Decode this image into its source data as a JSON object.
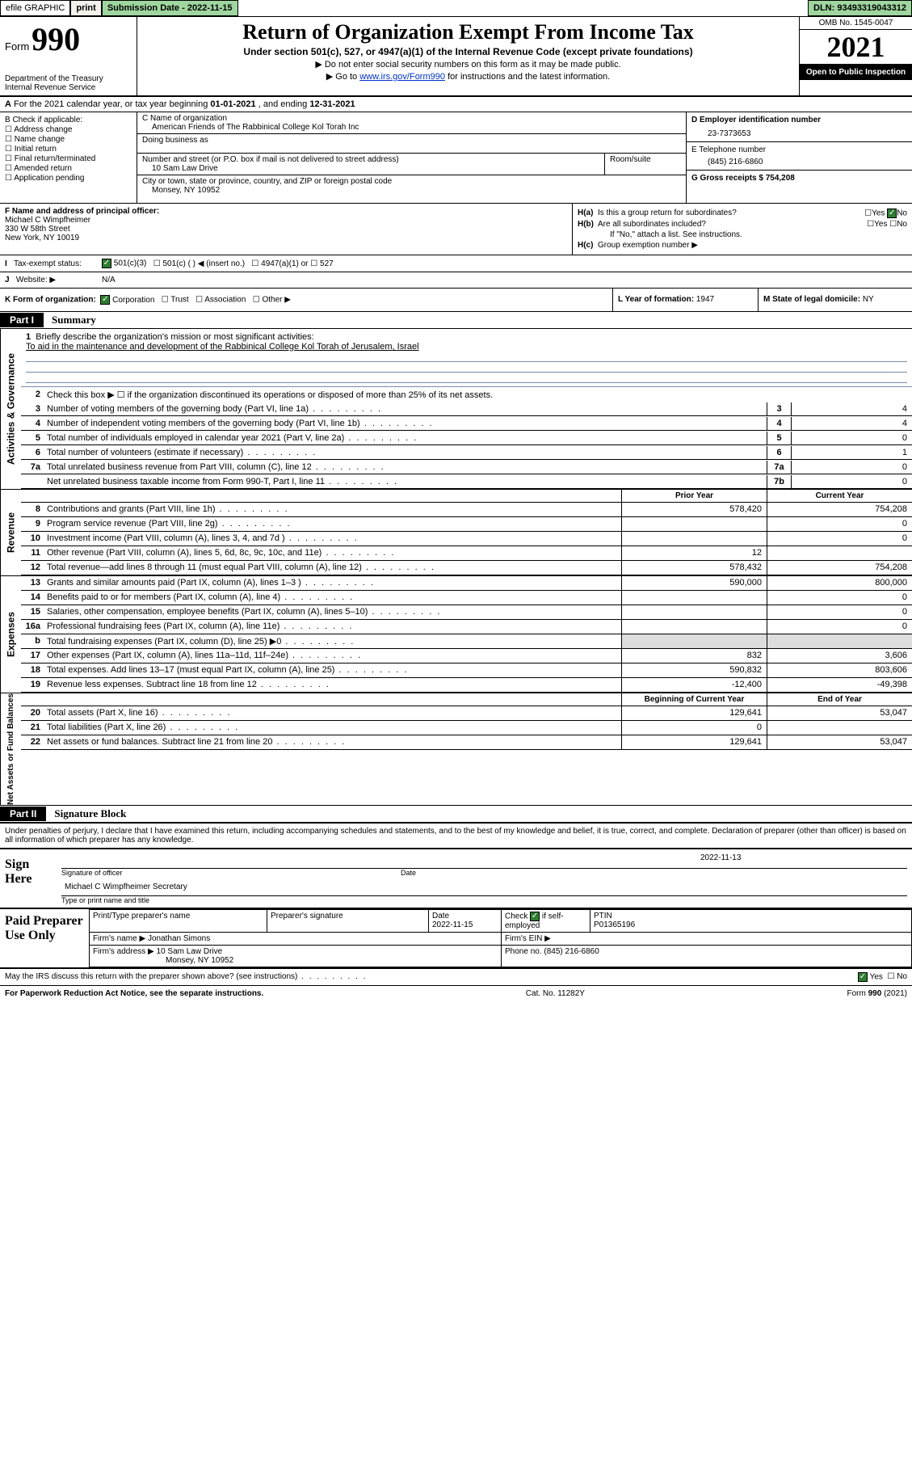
{
  "colors": {
    "green_bg": "#9fd69f",
    "dark_green": "#2e7d32",
    "link_blue": "#0033cc",
    "rule_blue": "#7a8aa8",
    "shade": "#dddddd"
  },
  "topbar": {
    "efile": "efile GRAPHIC",
    "print": "print",
    "subdate_label": "Submission Date -",
    "subdate": "2022-11-15",
    "dln_label": "DLN:",
    "dln": "93493319043312"
  },
  "header": {
    "form_label": "Form",
    "form_no": "990",
    "title": "Return of Organization Exempt From Income Tax",
    "subtitle": "Under section 501(c), 527, or 4947(a)(1) of the Internal Revenue Code (except private foundations)",
    "line1": "Do not enter social security numbers on this form as it may be made public.",
    "line2_pre": "Go to ",
    "line2_link": "www.irs.gov/Form990",
    "line2_post": " for instructions and the latest information.",
    "dept": "Department of the Treasury",
    "irs": "Internal Revenue Service",
    "omb": "OMB No. 1545-0047",
    "year": "2021",
    "open": "Open to Public Inspection"
  },
  "rowA": {
    "text_pre": "For the 2021 calendar year, or tax year beginning ",
    "begin": "01-01-2021",
    "mid": " , and ending ",
    "end": "12-31-2021"
  },
  "boxB": {
    "label": "B Check if applicable:",
    "opts": [
      "Address change",
      "Name change",
      "Initial return",
      "Final return/terminated",
      "Amended return",
      "Application pending"
    ]
  },
  "boxC": {
    "name_label": "C Name of organization",
    "name": "American Friends of The Rabbinical College Kol Torah Inc",
    "dba_label": "Doing business as",
    "dba": "",
    "street_label": "Number and street (or P.O. box if mail is not delivered to street address)",
    "room_label": "Room/suite",
    "street": "10 Sam Law Drive",
    "city_label": "City or town, state or province, country, and ZIP or foreign postal code",
    "city": "Monsey, NY  10952"
  },
  "boxD": {
    "label": "D Employer identification number",
    "ein": "23-7373653",
    "phone_label": "E Telephone number",
    "phone": "(845) 216-6860",
    "gross_label": "G Gross receipts $",
    "gross": "754,208"
  },
  "boxF": {
    "label": "F Name and address of principal officer:",
    "name": "Michael C Wimpfheimer",
    "addr1": "330 W 58th Street",
    "addr2": "New York, NY  10019"
  },
  "boxH": {
    "a_label": "H(a)",
    "a_text": "Is this a group return for subordinates?",
    "a_yes": "Yes",
    "a_no": "No",
    "b_label": "H(b)",
    "b_text": "Are all subordinates included?",
    "b_note": "If \"No,\" attach a list. See instructions.",
    "c_label": "H(c)",
    "c_text": "Group exemption number ▶"
  },
  "rowI": {
    "label": "Tax-exempt status:",
    "opts": [
      "501(c)(3)",
      "501(c) (  ) ◀ (insert no.)",
      "4947(a)(1) or",
      "527"
    ],
    "checked": 0
  },
  "rowJ": {
    "label": "Website: ▶",
    "value": "N/A"
  },
  "rowK": {
    "label": "K Form of organization:",
    "opts": [
      "Corporation",
      "Trust",
      "Association",
      "Other ▶"
    ],
    "checked": 0,
    "L_label": "L Year of formation:",
    "L_val": "1947",
    "M_label": "M State of legal domicile:",
    "M_val": "NY"
  },
  "parts": {
    "p1_tab": "Part I",
    "p1_title": "Summary",
    "p2_tab": "Part II",
    "p2_title": "Signature Block"
  },
  "vtabs": {
    "gov": "Activities & Governance",
    "rev": "Revenue",
    "exp": "Expenses",
    "net": "Net Assets or Fund Balances"
  },
  "summary": {
    "q1_lead": "Briefly describe the organization's mission or most significant activities:",
    "q1_text": "To aid in the maintenance and development of the Rabbinical College Kol Torah of Jerusalem, Israel",
    "q2": "Check this box ▶ ☐  if the organization discontinued its operations or disposed of more than 25% of its net assets.",
    "lines_gov": [
      {
        "n": "3",
        "t": "Number of voting members of the governing body (Part VI, line 1a)",
        "i": "3",
        "v": "4"
      },
      {
        "n": "4",
        "t": "Number of independent voting members of the governing body (Part VI, line 1b)",
        "i": "4",
        "v": "4"
      },
      {
        "n": "5",
        "t": "Total number of individuals employed in calendar year 2021 (Part V, line 2a)",
        "i": "5",
        "v": "0"
      },
      {
        "n": "6",
        "t": "Total number of volunteers (estimate if necessary)",
        "i": "6",
        "v": "1"
      },
      {
        "n": "7a",
        "t": "Total unrelated business revenue from Part VIII, column (C), line 12",
        "i": "7a",
        "v": "0"
      },
      {
        "n": "",
        "t": "Net unrelated business taxable income from Form 990-T, Part I, line 11",
        "i": "7b",
        "v": "0"
      }
    ],
    "col_hdr_prior": "Prior Year",
    "col_hdr_curr": "Current Year",
    "col_hdr_boy": "Beginning of Current Year",
    "col_hdr_eoy": "End of Year",
    "lines_rev": [
      {
        "n": "8",
        "t": "Contributions and grants (Part VIII, line 1h)",
        "p": "578,420",
        "c": "754,208"
      },
      {
        "n": "9",
        "t": "Program service revenue (Part VIII, line 2g)",
        "p": "",
        "c": "0"
      },
      {
        "n": "10",
        "t": "Investment income (Part VIII, column (A), lines 3, 4, and 7d )",
        "p": "",
        "c": "0"
      },
      {
        "n": "11",
        "t": "Other revenue (Part VIII, column (A), lines 5, 6d, 8c, 9c, 10c, and 11e)",
        "p": "12",
        "c": ""
      },
      {
        "n": "12",
        "t": "Total revenue—add lines 8 through 11 (must equal Part VIII, column (A), line 12)",
        "p": "578,432",
        "c": "754,208"
      }
    ],
    "lines_exp": [
      {
        "n": "13",
        "t": "Grants and similar amounts paid (Part IX, column (A), lines 1–3 )",
        "p": "590,000",
        "c": "800,000"
      },
      {
        "n": "14",
        "t": "Benefits paid to or for members (Part IX, column (A), line 4)",
        "p": "",
        "c": "0"
      },
      {
        "n": "15",
        "t": "Salaries, other compensation, employee benefits (Part IX, column (A), lines 5–10)",
        "p": "",
        "c": "0"
      },
      {
        "n": "16a",
        "t": "Professional fundraising fees (Part IX, column (A), line 11e)",
        "p": "",
        "c": "0"
      },
      {
        "n": "b",
        "t": "Total fundraising expenses (Part IX, column (D), line 25) ▶0",
        "p": "shade",
        "c": "shade"
      },
      {
        "n": "17",
        "t": "Other expenses (Part IX, column (A), lines 11a–11d, 11f–24e)",
        "p": "832",
        "c": "3,606"
      },
      {
        "n": "18",
        "t": "Total expenses. Add lines 13–17 (must equal Part IX, column (A), line 25)",
        "p": "590,832",
        "c": "803,606"
      },
      {
        "n": "19",
        "t": "Revenue less expenses. Subtract line 18 from line 12",
        "p": "-12,400",
        "c": "-49,398"
      }
    ],
    "lines_net": [
      {
        "n": "20",
        "t": "Total assets (Part X, line 16)",
        "p": "129,641",
        "c": "53,047"
      },
      {
        "n": "21",
        "t": "Total liabilities (Part X, line 26)",
        "p": "0",
        "c": ""
      },
      {
        "n": "22",
        "t": "Net assets or fund balances. Subtract line 21 from line 20",
        "p": "129,641",
        "c": "53,047"
      }
    ]
  },
  "sig": {
    "decl": "Under penalties of perjury, I declare that I have examined this return, including accompanying schedules and statements, and to the best of my knowledge and belief, it is true, correct, and complete. Declaration of preparer (other than officer) is based on all information of which preparer has any knowledge.",
    "sign_here": "Sign Here",
    "sig_officer": "Signature of officer",
    "date_lbl": "Date",
    "date_val": "2022-11-13",
    "name_title": "Michael C Wimpfheimer  Secretary",
    "name_title_lbl": "Type or print name and title"
  },
  "prep": {
    "label": "Paid Preparer Use Only",
    "h1": "Print/Type preparer's name",
    "h2": "Preparer's signature",
    "h3_lbl": "Date",
    "h3": "2022-11-15",
    "h4": "Check ✔ if self-employed",
    "h5_lbl": "PTIN",
    "h5": "P01365196",
    "firm_name_lbl": "Firm's name    ▶",
    "firm_name": "Jonathan Simons",
    "firm_ein_lbl": "Firm's EIN ▶",
    "firm_addr_lbl": "Firm's address ▶",
    "firm_addr1": "10 Sam Law Drive",
    "firm_addr2": "Monsey, NY  10952",
    "firm_phone_lbl": "Phone no.",
    "firm_phone": "(845) 216-6860",
    "discuss": "May the IRS discuss this return with the preparer shown above? (see instructions)",
    "yes": "Yes",
    "no": "No"
  },
  "footer": {
    "left": "For Paperwork Reduction Act Notice, see the separate instructions.",
    "mid": "Cat. No. 11282Y",
    "right": "Form 990 (2021)"
  }
}
